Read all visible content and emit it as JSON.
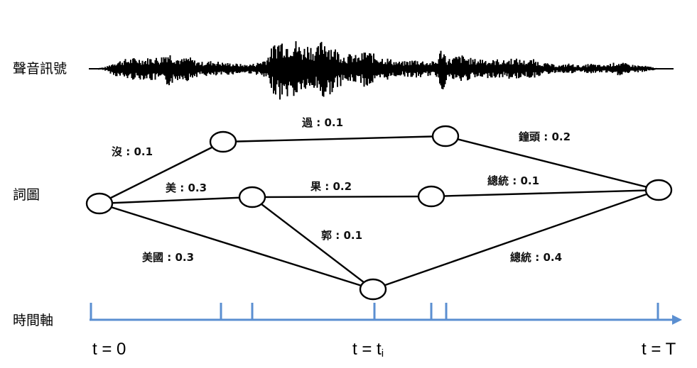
{
  "labels": {
    "signal": "聲音訊號",
    "lattice": "詞圖",
    "time_axis": "時間軸"
  },
  "edges": [
    {
      "word": "沒",
      "prob": "0.1",
      "text": "沒 : 0.1"
    },
    {
      "word": "過",
      "prob": "0.1",
      "text": "過 : 0.1"
    },
    {
      "word": "鐘頭",
      "prob": "0.2",
      "text": "鐘頭 : 0.2"
    },
    {
      "word": "美",
      "prob": "0.3",
      "text": "美 : 0.3"
    },
    {
      "word": "果",
      "prob": "0.2",
      "text": "果 : 0.2"
    },
    {
      "word": "總統",
      "prob": "0.1",
      "text": "總統 : 0.1"
    },
    {
      "word": "郭",
      "prob": "0.1",
      "text": "郭 : 0.1"
    },
    {
      "word": "美國",
      "prob": "0.3",
      "text": "美國 : 0.3"
    },
    {
      "word": "總統",
      "prob": "0.4",
      "text": "總統 : 0.4"
    }
  ],
  "time": {
    "start": "t = 0",
    "mid_prefix": "t = t",
    "mid_sub": "i",
    "end": "t = T"
  },
  "colors": {
    "axis": "#5b8fd1",
    "ink": "#000000"
  }
}
